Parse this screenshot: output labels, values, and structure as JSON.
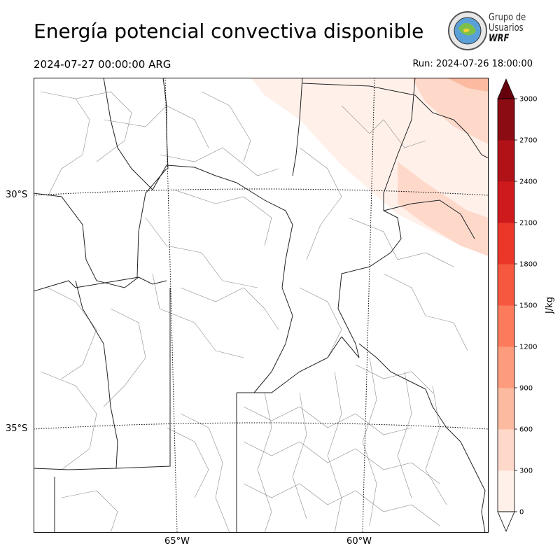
{
  "header": {
    "title": "Energía potencial convectiva disponible",
    "valid_time": "2024-07-27 00:00:00 ARG",
    "run_time": "Run: 2024-07-26 18:00:00"
  },
  "logo": {
    "line1": "Grupo de",
    "line2": "Usuarios",
    "line3": "WRF"
  },
  "map": {
    "lat_labels": [
      "30°S",
      "35°S"
    ],
    "lon_labels": [
      "65°W",
      "60°W"
    ],
    "colors": {
      "border": "#222222",
      "department": "#8c8c8c",
      "graticule": "#000000"
    }
  },
  "colorbar": {
    "label": "J/kg",
    "ticks": [
      "0",
      "300",
      "600",
      "900",
      "1200",
      "1500",
      "1800",
      "2100",
      "2400",
      "2700",
      "3000"
    ],
    "colors": [
      "#fff0ea",
      "#fed9ca",
      "#fcbba1",
      "#fc9c7d",
      "#fb7b5c",
      "#f6583f",
      "#eb372a",
      "#cf1a1d",
      "#b11218",
      "#8c0c14",
      "#67000d"
    ]
  }
}
